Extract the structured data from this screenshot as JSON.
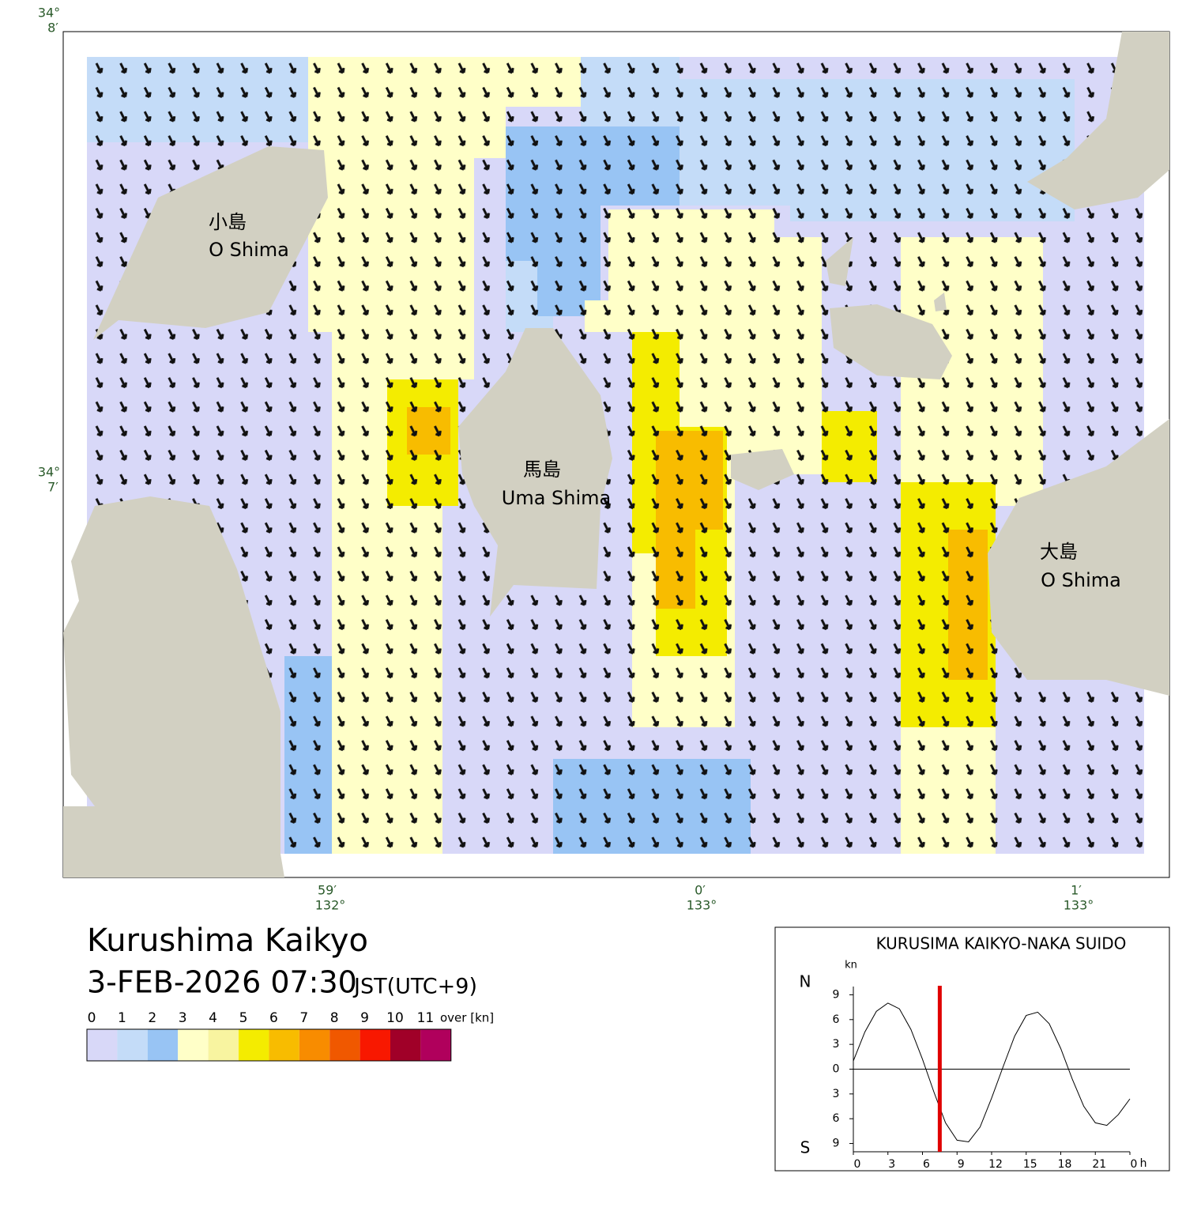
{
  "map": {
    "title": "Kurushima Kaikyo",
    "datetime": "3-FEB-2026 07:30",
    "timezone": "JST(UTC+9)",
    "legend": {
      "labels": [
        "0",
        "1",
        "2",
        "3",
        "4",
        "5",
        "6",
        "7",
        "8",
        "9",
        "10",
        "11"
      ],
      "over_label": "over [kn]",
      "colors": [
        "#d8d8f8",
        "#c4dcf8",
        "#98c4f4",
        "#ffffc8",
        "#f8f4a0",
        "#f4ec00",
        "#f8bc00",
        "#f88c00",
        "#f05800",
        "#f81800",
        "#a00028",
        "#b0005c"
      ]
    },
    "islands": [
      {
        "ja": "小島",
        "en": "O Shima"
      },
      {
        "ja": "馬島",
        "en": "Uma Shima"
      },
      {
        "ja": "大島",
        "en": "O Shima"
      }
    ],
    "lat_labels": [
      {
        "deg": "34°",
        "min": "8′"
      },
      {
        "deg": "34°",
        "min": "7′"
      }
    ],
    "lon_labels": [
      {
        "min": "59′",
        "deg": "132°"
      },
      {
        "min": "0′",
        "deg": "133°"
      },
      {
        "min": "1′",
        "deg": "133°"
      }
    ]
  },
  "chart_data": {
    "type": "line",
    "title": "KURUSIMA KAIKYO-NAKA SUIDO",
    "y_unit": "kn",
    "north_label": "N",
    "south_label": "S",
    "x_unit": "h",
    "x": [
      0,
      1,
      2,
      3,
      4,
      5,
      6,
      7,
      8,
      9,
      10,
      11,
      12,
      13,
      14,
      15,
      16,
      17,
      18,
      19,
      20,
      21,
      22,
      23,
      24
    ],
    "series": [
      {
        "color": "#000000",
        "values": [
          1,
          4.5,
          7,
          8,
          7.3,
          4.8,
          1.2,
          -2.8,
          -6.5,
          -8.6,
          -8.8,
          -7,
          -3.5,
          0.3,
          4,
          6.5,
          6.9,
          5.5,
          2.5,
          -1.2,
          -4.5,
          -6.5,
          -6.8,
          -5.5,
          -3.6
        ]
      }
    ],
    "current_time": 7.5,
    "current_color": "#e00000",
    "xlim": [
      0,
      24
    ],
    "ylim": [
      -10,
      10
    ],
    "xticks": [
      0,
      3,
      6,
      9,
      12,
      15,
      18,
      21,
      {
        "value": 24,
        "label": "0"
      }
    ],
    "yticks": [
      {
        "value": 9,
        "label": "9"
      },
      {
        "value": 6,
        "label": "6"
      },
      {
        "value": 3,
        "label": "3"
      },
      0,
      {
        "value": -3,
        "label": "3"
      },
      {
        "value": -6,
        "label": "6"
      },
      {
        "value": -9,
        "label": "9"
      }
    ]
  }
}
